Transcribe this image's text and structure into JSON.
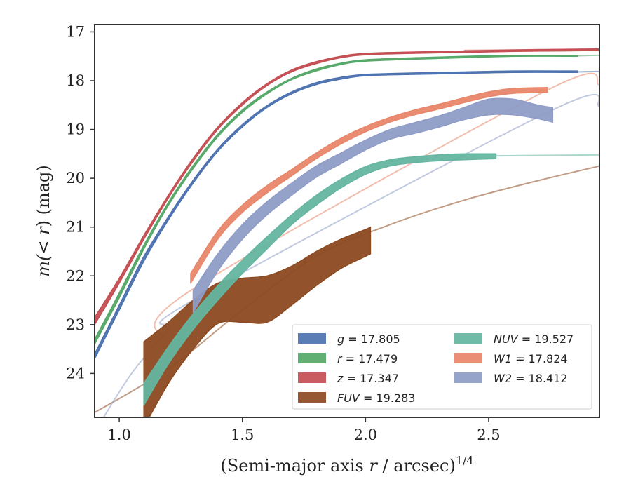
{
  "chart_data": {
    "type": "line",
    "xlabel": "(Semi-major axis r / arcsec)^1/4",
    "ylabel": "m(< r) (mag)",
    "xlim": [
      0.9,
      2.95
    ],
    "ylim": [
      24.9,
      16.85
    ],
    "y_inverted": true,
    "xticks": [
      "1.0",
      "1.5",
      "2.0",
      "2.5"
    ],
    "xtick_values": [
      1.0,
      1.5,
      2.0,
      2.5
    ],
    "yticks": [
      "17",
      "18",
      "19",
      "20",
      "21",
      "22",
      "23",
      "24"
    ],
    "ytick_values": [
      17,
      18,
      19,
      20,
      21,
      22,
      23,
      24
    ],
    "grid": false,
    "legend_position": "lower-right",
    "series": [
      {
        "name": "g = 17.805",
        "color": "#4c72b0",
        "band": [
          [
            0.9,
            23.7,
            23.6
          ],
          [
            1.0,
            22.7,
            22.6
          ],
          [
            1.1,
            21.7,
            21.6
          ],
          [
            1.2,
            20.85,
            20.78
          ],
          [
            1.3,
            20.1,
            20.04
          ],
          [
            1.4,
            19.45,
            19.4
          ],
          [
            1.5,
            18.95,
            18.9
          ],
          [
            1.6,
            18.55,
            18.51
          ],
          [
            1.7,
            18.27,
            18.23
          ],
          [
            1.8,
            18.08,
            18.04
          ],
          [
            1.9,
            17.97,
            17.93
          ],
          [
            2.0,
            17.9,
            17.87
          ],
          [
            2.2,
            17.87,
            17.84
          ],
          [
            2.4,
            17.85,
            17.82
          ],
          [
            2.6,
            17.83,
            17.8
          ],
          [
            2.8,
            17.83,
            17.8
          ],
          [
            2.86,
            17.83,
            17.8
          ]
        ],
        "model": [
          [
            2.86,
            17.82
          ],
          [
            2.95,
            17.81
          ]
        ]
      },
      {
        "name": "r = 17.479",
        "color": "#55a868",
        "band": [
          [
            0.9,
            23.4,
            23.3
          ],
          [
            1.0,
            22.45,
            22.35
          ],
          [
            1.1,
            21.45,
            21.37
          ],
          [
            1.2,
            20.55,
            20.49
          ],
          [
            1.3,
            19.8,
            19.74
          ],
          [
            1.4,
            19.15,
            19.1
          ],
          [
            1.5,
            18.65,
            18.6
          ],
          [
            1.6,
            18.27,
            18.23
          ],
          [
            1.7,
            17.98,
            17.95
          ],
          [
            1.8,
            17.8,
            17.76
          ],
          [
            1.9,
            17.67,
            17.64
          ],
          [
            2.0,
            17.6,
            17.57
          ],
          [
            2.2,
            17.56,
            17.53
          ],
          [
            2.4,
            17.53,
            17.5
          ],
          [
            2.6,
            17.5,
            17.48
          ],
          [
            2.8,
            17.5,
            17.48
          ],
          [
            2.86,
            17.5,
            17.48
          ]
        ],
        "model": [
          [
            2.86,
            17.49
          ],
          [
            2.95,
            17.48
          ]
        ]
      },
      {
        "name": "z = 17.347",
        "color": "#c44e52",
        "band": [
          [
            0.9,
            23.0,
            22.85
          ],
          [
            1.0,
            22.15,
            22.05
          ],
          [
            1.1,
            21.25,
            21.17
          ],
          [
            1.2,
            20.4,
            20.34
          ],
          [
            1.3,
            19.65,
            19.59
          ],
          [
            1.4,
            19.0,
            18.95
          ],
          [
            1.5,
            18.5,
            18.45
          ],
          [
            1.6,
            18.1,
            18.06
          ],
          [
            1.7,
            17.82,
            17.78
          ],
          [
            1.8,
            17.65,
            17.61
          ],
          [
            1.9,
            17.53,
            17.5
          ],
          [
            2.0,
            17.47,
            17.44
          ],
          [
            2.2,
            17.44,
            17.41
          ],
          [
            2.4,
            17.42,
            17.39
          ],
          [
            2.6,
            17.4,
            17.37
          ],
          [
            2.8,
            17.39,
            17.36
          ],
          [
            2.95,
            17.38,
            17.35
          ]
        ],
        "model": [
          [
            2.4,
            17.38
          ],
          [
            2.95,
            17.35
          ]
        ]
      },
      {
        "name": "FUV = 19.283",
        "color": "#8c4a21",
        "band": [
          [
            1.1,
            25.1,
            23.35
          ],
          [
            1.2,
            24.2,
            22.95
          ],
          [
            1.3,
            23.5,
            22.5
          ],
          [
            1.4,
            22.98,
            22.15
          ],
          [
            1.5,
            22.95,
            22.05
          ],
          [
            1.6,
            22.95,
            22.0
          ],
          [
            1.7,
            22.6,
            21.8
          ],
          [
            1.8,
            22.2,
            21.5
          ],
          [
            1.9,
            21.85,
            21.25
          ],
          [
            2.0,
            21.6,
            21.05
          ],
          [
            2.02,
            21.55,
            21.0
          ]
        ],
        "model": [
          [
            0.9,
            24.8
          ],
          [
            1.2,
            23.9
          ],
          [
            1.5,
            22.7
          ],
          [
            1.8,
            21.6
          ],
          [
            2.1,
            20.95
          ],
          [
            2.4,
            20.45
          ],
          [
            2.7,
            20.05
          ],
          [
            2.95,
            19.75
          ]
        ]
      },
      {
        "name": "NUV = 19.527",
        "color": "#64b5a0",
        "band": [
          [
            1.1,
            24.65,
            24.2
          ],
          [
            1.2,
            23.8,
            23.45
          ],
          [
            1.3,
            23.1,
            22.78
          ],
          [
            1.4,
            22.5,
            22.2
          ],
          [
            1.5,
            21.95,
            21.68
          ],
          [
            1.6,
            21.45,
            21.2
          ],
          [
            1.7,
            20.95,
            20.75
          ],
          [
            1.8,
            20.55,
            20.35
          ],
          [
            1.9,
            20.2,
            20.02
          ],
          [
            2.0,
            19.92,
            19.76
          ],
          [
            2.1,
            19.75,
            19.62
          ],
          [
            2.2,
            19.68,
            19.56
          ],
          [
            2.3,
            19.64,
            19.52
          ],
          [
            2.4,
            19.62,
            19.5
          ],
          [
            2.53,
            19.6,
            19.5
          ]
        ],
        "model": [
          [
            2.53,
            19.54
          ],
          [
            2.95,
            19.52
          ]
        ]
      },
      {
        "name": "W1 = 17.824",
        "color": "#e8866a",
        "band": [
          [
            1.29,
            22.15,
            21.95
          ],
          [
            1.4,
            21.25,
            21.08
          ],
          [
            1.5,
            20.7,
            20.55
          ],
          [
            1.6,
            20.3,
            20.15
          ],
          [
            1.7,
            19.95,
            19.82
          ],
          [
            1.8,
            19.6,
            19.48
          ],
          [
            1.9,
            19.3,
            19.18
          ],
          [
            2.0,
            19.05,
            18.94
          ],
          [
            2.1,
            18.85,
            18.75
          ],
          [
            2.2,
            18.7,
            18.6
          ],
          [
            2.3,
            18.58,
            18.48
          ],
          [
            2.4,
            18.45,
            18.35
          ],
          [
            2.5,
            18.33,
            18.23
          ],
          [
            2.6,
            18.26,
            18.16
          ],
          [
            2.74,
            18.24,
            18.14
          ]
        ],
        "model": [
          [
            1.18,
            23.3
          ],
          [
            1.29,
            22.3
          ],
          [
            2.74,
            18.19
          ],
          [
            2.95,
            18.08
          ]
        ]
      },
      {
        "name": "W2 = 18.412",
        "color": "#8e9cc6",
        "band": [
          [
            1.3,
            22.75,
            22.3
          ],
          [
            1.4,
            21.9,
            21.55
          ],
          [
            1.5,
            21.25,
            20.95
          ],
          [
            1.6,
            20.75,
            20.48
          ],
          [
            1.7,
            20.35,
            20.1
          ],
          [
            1.8,
            19.98,
            19.75
          ],
          [
            1.9,
            19.7,
            19.48
          ],
          [
            2.0,
            19.42,
            19.22
          ],
          [
            2.1,
            19.2,
            19.0
          ],
          [
            2.2,
            19.08,
            18.86
          ],
          [
            2.3,
            18.95,
            18.72
          ],
          [
            2.4,
            18.8,
            18.55
          ],
          [
            2.5,
            18.7,
            18.38
          ],
          [
            2.6,
            18.7,
            18.38
          ],
          [
            2.7,
            18.78,
            18.5
          ],
          [
            2.76,
            18.85,
            18.55
          ]
        ],
        "model": [
          [
            0.9,
            25.2
          ],
          [
            1.05,
            24.0
          ],
          [
            1.2,
            23.1
          ],
          [
            1.3,
            22.5
          ],
          [
            2.76,
            18.6
          ],
          [
            2.95,
            18.52
          ]
        ]
      }
    ]
  },
  "legend": {
    "left": [
      {
        "var": "g",
        "value": " = 17.805",
        "color": "#4c72b0"
      },
      {
        "var": "r",
        "value": " = 17.479",
        "color": "#55a868"
      },
      {
        "var": "z",
        "value": " = 17.347",
        "color": "#c44e52"
      },
      {
        "var": "FUV",
        "value": " = 19.283",
        "color": "#8c4a21"
      }
    ],
    "right": [
      {
        "var": "NUV",
        "value": " = 19.527",
        "color": "#64b5a0"
      },
      {
        "var": "W1",
        "value": " = 17.824",
        "color": "#e8866a"
      },
      {
        "var": "W2",
        "value": " = 18.412",
        "color": "#8e9cc6"
      }
    ]
  },
  "axes": {
    "y_title_pre": "m(",
    "y_title_ital": "< r",
    "y_title_post": ") (mag)",
    "x_title_pre": "(Semi-major axis ",
    "x_title_ital": "r",
    "x_title_post": " / arcsec)",
    "x_title_exp": "1/4"
  }
}
